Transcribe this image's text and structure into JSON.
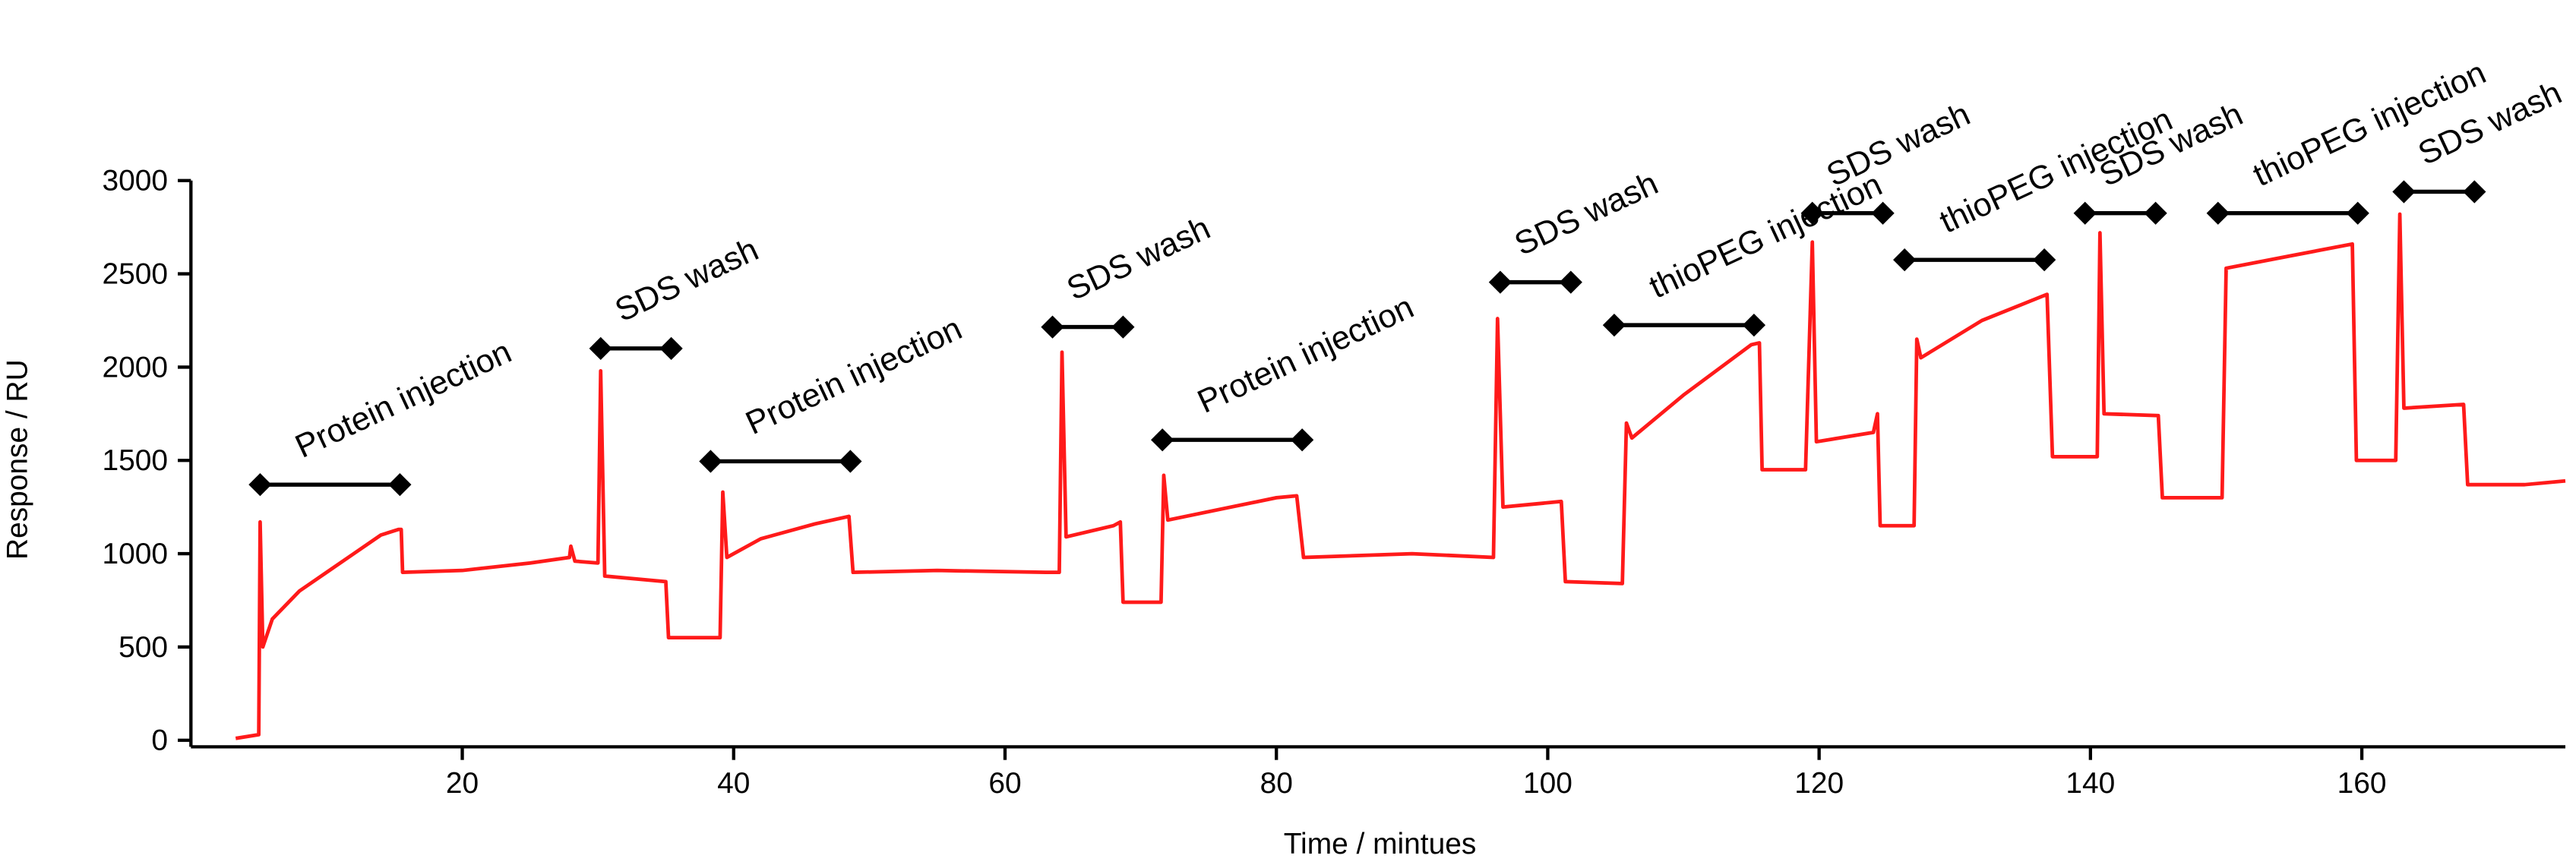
{
  "chart_data": {
    "type": "line",
    "xlabel": "Time / mintues",
    "ylabel": "Response / RU",
    "color": "#ff1a1a",
    "xlim": [
      0,
      175
    ],
    "ylim": [
      0,
      3000
    ],
    "xticks": [
      20,
      40,
      60,
      80,
      100,
      120,
      140,
      160
    ],
    "yticks": [
      0,
      500,
      1000,
      1500,
      2000,
      2500,
      3000
    ],
    "x": [
      3.3,
      5.0,
      5.1,
      5.3,
      6,
      8,
      10,
      12,
      14,
      15.3,
      15.5,
      15.6,
      20,
      25,
      27.9,
      28,
      28.3,
      30,
      30.2,
      30.5,
      35,
      35.2,
      39,
      39.2,
      39.5,
      42,
      46,
      48.5,
      48.8,
      55,
      63,
      64,
      64.2,
      64.5,
      68,
      68.5,
      68.7,
      71.5,
      71.7,
      72,
      76,
      80,
      81.5,
      82,
      90,
      96,
      96.3,
      96.7,
      101,
      101.3,
      105.5,
      105.8,
      106.2,
      110,
      115,
      115.6,
      115.8,
      119,
      119.5,
      119.8,
      124,
      124.3,
      124.5,
      127,
      127.2,
      127.5,
      132,
      136.8,
      137.2,
      140.5,
      140.7,
      141,
      145,
      145.3,
      149.7,
      150,
      155,
      159.3,
      159.6,
      162.5,
      162.8,
      163.1,
      167.5,
      167.8,
      172,
      175
    ],
    "values": [
      10,
      30,
      1170,
      500,
      650,
      800,
      900,
      1000,
      1100,
      1130,
      1130,
      900,
      910,
      950,
      980,
      1040,
      960,
      950,
      1980,
      880,
      850,
      550,
      550,
      1330,
      980,
      1080,
      1160,
      1200,
      900,
      910,
      900,
      900,
      2080,
      1090,
      1150,
      1170,
      740,
      740,
      1420,
      1180,
      1240,
      1300,
      1310,
      980,
      1000,
      980,
      2260,
      1250,
      1280,
      850,
      840,
      1700,
      1620,
      1850,
      2120,
      2130,
      1450,
      1450,
      2670,
      1600,
      1650,
      1750,
      1150,
      1150,
      2150,
      2050,
      2250,
      2390,
      1520,
      1520,
      2720,
      1750,
      1740,
      1300,
      1300,
      2530,
      2600,
      2660,
      1500,
      1500,
      2820,
      1780,
      1800,
      1370,
      1370,
      1390
    ],
    "annotations": [
      {
        "text": "Protein injection",
        "start": 5.1,
        "end": 15.4,
        "y": 1370
      },
      {
        "text": "SDS wash",
        "start": 30.2,
        "end": 35.4,
        "y": 2100
      },
      {
        "text": "Protein injection",
        "start": 38.3,
        "end": 48.6,
        "y": 1495
      },
      {
        "text": "SDS wash",
        "start": 63.5,
        "end": 68.7,
        "y": 2215
      },
      {
        "text": "Protein injection",
        "start": 71.6,
        "end": 81.9,
        "y": 1610
      },
      {
        "text": "SDS wash",
        "start": 96.5,
        "end": 101.7,
        "y": 2455
      },
      {
        "text": "thioPEG injection",
        "start": 104.9,
        "end": 115.2,
        "y": 2225
      },
      {
        "text": "SDS wash",
        "start": 119.5,
        "end": 124.7,
        "y": 2825
      },
      {
        "text": "thioPEG injection",
        "start": 126.3,
        "end": 136.6,
        "y": 2575
      },
      {
        "text": "SDS wash",
        "start": 139.6,
        "end": 144.8,
        "y": 2825
      },
      {
        "text": "thioPEG injection",
        "start": 149.4,
        "end": 159.7,
        "y": 2825
      },
      {
        "text": "SDS wash",
        "start": 163.1,
        "end": 168.3,
        "y": 2940
      }
    ]
  }
}
